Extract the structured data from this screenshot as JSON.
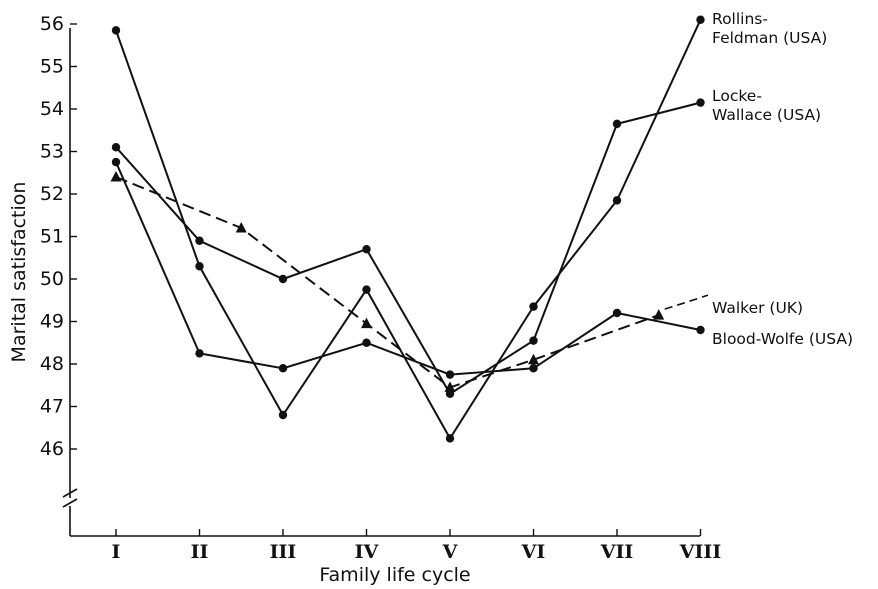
{
  "chart_data": {
    "type": "line",
    "title": "",
    "xlabel": "Family life cycle",
    "ylabel": "Marital satisfaction",
    "categories": [
      "I",
      "II",
      "III",
      "IV",
      "V",
      "VI",
      "VII",
      "VIII"
    ],
    "y_ticks": [
      46,
      47,
      48,
      49,
      50,
      51,
      52,
      53,
      54,
      55,
      56
    ],
    "ylim": [
      44.8,
      56.5
    ],
    "grid": false,
    "legend": "labels at line ends on right",
    "series": [
      {
        "name": "Rollins-Feldman (USA)",
        "label_lines": [
          "Rollins-",
          "Feldman (USA)"
        ],
        "marker": "circle",
        "style": "solid",
        "x": [
          1,
          2,
          3,
          4,
          5,
          6,
          7,
          8
        ],
        "values": [
          55.85,
          50.3,
          46.8,
          49.75,
          46.25,
          49.35,
          51.85,
          56.1
        ]
      },
      {
        "name": "Locke-Wallace (USA)",
        "label_lines": [
          "Locke-",
          "Wallace (USA)"
        ],
        "marker": "circle",
        "style": "solid",
        "x": [
          1,
          2,
          3,
          4,
          5,
          6,
          7,
          8
        ],
        "values": [
          53.1,
          50.9,
          50.0,
          50.7,
          47.3,
          48.55,
          53.65,
          54.15
        ]
      },
      {
        "name": "Walker (UK)",
        "label_lines": [
          "Walker (UK)"
        ],
        "marker": "triangle",
        "style": "dashed",
        "x": [
          1,
          2.5,
          4,
          5,
          6,
          7.5
        ],
        "values": [
          52.4,
          51.2,
          48.95,
          47.45,
          48.1,
          49.15
        ]
      },
      {
        "name": "Blood-Wolfe (USA)",
        "label_lines": [
          "Blood-Wolfe (USA)"
        ],
        "marker": "circle",
        "style": "solid",
        "x": [
          1,
          2,
          3,
          4,
          5,
          6,
          7,
          8
        ],
        "values": [
          52.75,
          48.25,
          47.9,
          48.5,
          47.75,
          47.9,
          49.2,
          48.8
        ]
      }
    ]
  }
}
